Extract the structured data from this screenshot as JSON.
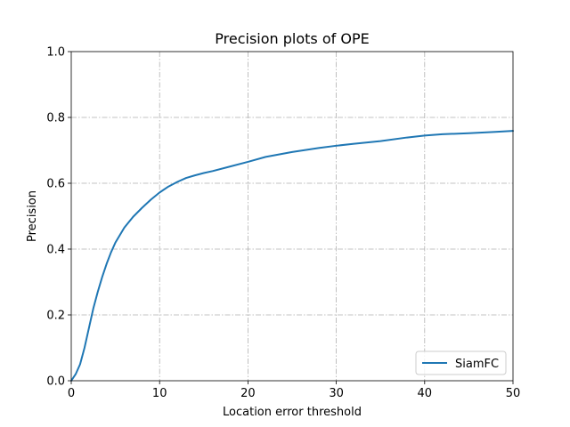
{
  "chart_data": {
    "type": "line",
    "title": "Precision plots of OPE",
    "xlabel": "Location error threshold",
    "ylabel": "Precision",
    "xlim": [
      0,
      50
    ],
    "ylim": [
      0,
      1.0
    ],
    "xticks": [
      0,
      10,
      20,
      30,
      40,
      50
    ],
    "xtick_labels": [
      "0",
      "10",
      "20",
      "30",
      "40",
      "50"
    ],
    "yticks": [
      0,
      0.2,
      0.4,
      0.6,
      0.8,
      1.0
    ],
    "ytick_labels": [
      "0.0",
      "0.2",
      "0.4",
      "0.6",
      "0.8",
      "1.0"
    ],
    "grid": true,
    "legend_position": "bottom-right",
    "series": [
      {
        "name": "SiamFC",
        "color": "#1f77b4",
        "x": [
          0,
          0.5,
          1,
          1.5,
          2,
          2.5,
          3,
          3.5,
          4,
          4.5,
          5,
          6,
          7,
          8,
          9,
          10,
          11,
          12,
          13,
          14,
          15,
          16,
          18,
          20,
          22,
          25,
          28,
          30,
          32,
          35,
          38,
          40,
          42,
          45,
          48,
          50
        ],
        "y": [
          0.0,
          0.02,
          0.05,
          0.1,
          0.16,
          0.22,
          0.27,
          0.315,
          0.355,
          0.39,
          0.42,
          0.465,
          0.498,
          0.525,
          0.55,
          0.572,
          0.59,
          0.604,
          0.616,
          0.624,
          0.631,
          0.637,
          0.651,
          0.665,
          0.68,
          0.695,
          0.707,
          0.714,
          0.72,
          0.728,
          0.739,
          0.745,
          0.749,
          0.752,
          0.756,
          0.759
        ]
      }
    ]
  }
}
